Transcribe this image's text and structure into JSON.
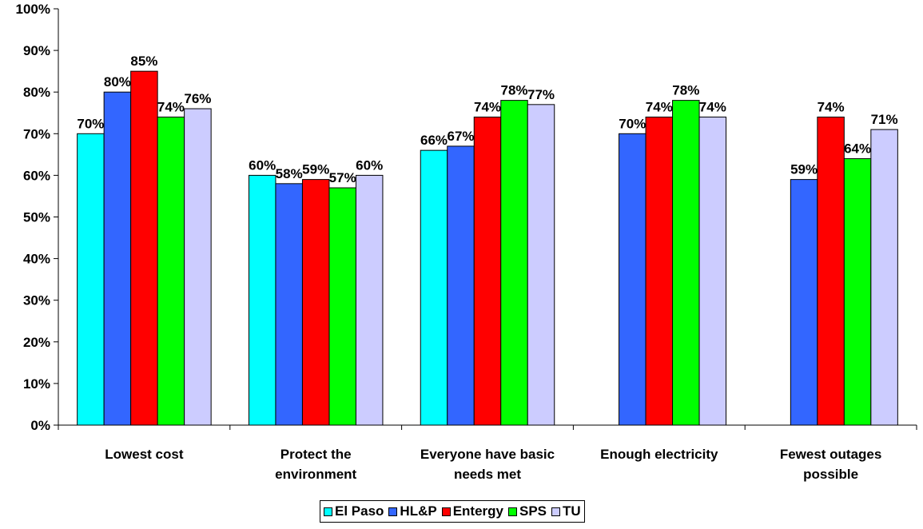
{
  "chart_data": {
    "type": "bar",
    "title": "",
    "xlabel": "",
    "ylabel": "",
    "ylim": [
      0,
      100
    ],
    "yticks": [
      "0%",
      "10%",
      "20%",
      "30%",
      "40%",
      "50%",
      "60%",
      "70%",
      "80%",
      "90%",
      "100%"
    ],
    "categories": [
      [
        "Lowest cost"
      ],
      [
        "Protect the",
        "environment"
      ],
      [
        "Everyone have basic",
        "needs met"
      ],
      [
        "Enough electricity"
      ],
      [
        "Fewest outages",
        "possible"
      ]
    ],
    "series": [
      {
        "name": "El Paso",
        "color": "#00FFFF",
        "values": [
          70,
          60,
          66,
          null,
          null
        ]
      },
      {
        "name": "HL&P",
        "color": "#3366FF",
        "values": [
          80,
          58,
          67,
          70,
          59
        ]
      },
      {
        "name": "Entergy",
        "color": "#FF0000",
        "values": [
          85,
          59,
          74,
          74,
          74
        ]
      },
      {
        "name": "SPS",
        "color": "#00FF00",
        "values": [
          74,
          57,
          78,
          78,
          64
        ]
      },
      {
        "name": "TU",
        "color": "#CCCCFF",
        "values": [
          76,
          60,
          77,
          74,
          71
        ]
      }
    ],
    "legend_position": "bottom",
    "grid": false
  }
}
